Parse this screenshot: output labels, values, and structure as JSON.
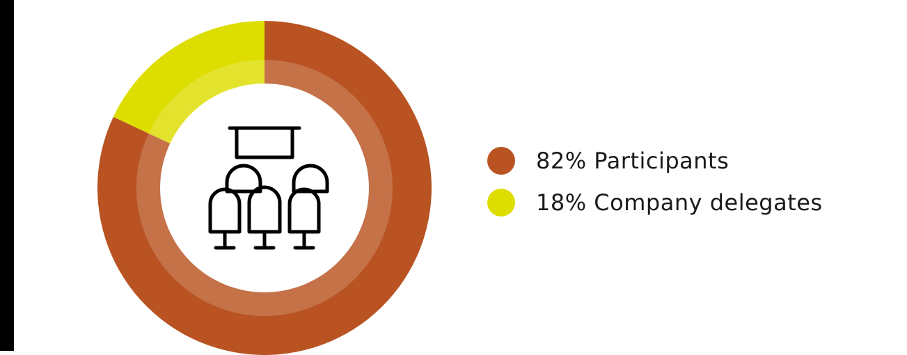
{
  "chart_data": {
    "type": "pie",
    "categories": [
      "Participants",
      "Company delegates"
    ],
    "values": [
      82,
      18
    ],
    "colors": [
      "#B95322",
      "#DDDD00"
    ],
    "legend_position": "right",
    "center_icon": "presentation-audience-icon"
  },
  "legend": {
    "items": [
      {
        "label": "82% Participants",
        "color": "#B95322"
      },
      {
        "label": "18% Company delegates",
        "color": "#DDDD00"
      }
    ]
  },
  "colors": {
    "ring_highlight": "#FFFFFF",
    "icon_stroke": "#000000",
    "left_bar": "#000000"
  }
}
